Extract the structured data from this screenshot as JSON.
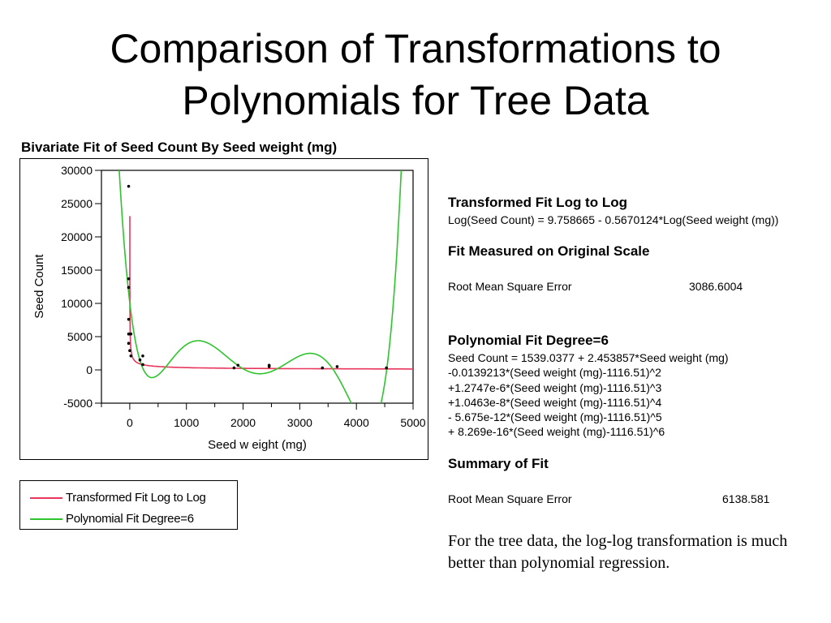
{
  "slide": {
    "title_line1": "Comparison of Transformations to",
    "title_line2": "Polynomials for Tree Data",
    "note": "For the tree data, the log-log transformation is much better than polynomial regression."
  },
  "report": {
    "loglog_heading": "Transformed Fit Log to Log",
    "loglog_equation": "Log(Seed Count) = 9.758665 - 0.5670124*Log(Seed weight (mg))",
    "orig_scale_heading": "Fit Measured on Original Scale",
    "rmse_label_1": "Root Mean Square Error",
    "rmse_value_1": "3086.6004",
    "poly_heading": "Polynomial Fit Degree=6",
    "poly_lines": [
      "Seed Count = 1539.0377 + 2.453857*Seed weight (mg)",
      "-0.0139213*(Seed weight (mg)-1116.51)^2",
      "+1.2747e-6*(Seed weight (mg)-1116.51)^3",
      "+1.0463e-8*(Seed weight (mg)-1116.51)^4",
      "- 5.675e-12*(Seed weight (mg)-1116.51)^5",
      "+ 8.269e-16*(Seed weight (mg)-1116.51)^6"
    ],
    "summary_heading": "Summary of Fit",
    "rmse_label_2": "Root Mean Square Error",
    "rmse_value_2": "6138.581"
  },
  "chart_data": {
    "type": "scatter",
    "title": "Bivariate Fit of Seed Count By Seed weight (mg)",
    "xlabel": "Seed w eight (mg)",
    "ylabel": "Seed Count",
    "xlim": [
      -500,
      5000
    ],
    "ylim": [
      -5000,
      30000
    ],
    "xticks": [
      0,
      1000,
      2000,
      3000,
      4000,
      5000
    ],
    "yticks": [
      -5000,
      0,
      5000,
      10000,
      15000,
      20000,
      25000,
      30000
    ],
    "points": [
      [
        -20,
        27600
      ],
      [
        -20,
        13700
      ],
      [
        -20,
        12400
      ],
      [
        -20,
        7600
      ],
      [
        -20,
        5400
      ],
      [
        0,
        5400
      ],
      [
        20,
        5400
      ],
      [
        -20,
        4000
      ],
      [
        0,
        2900
      ],
      [
        20,
        2100
      ],
      [
        230,
        2100
      ],
      [
        180,
        1500
      ],
      [
        230,
        800
      ],
      [
        1840,
        300
      ],
      [
        1910,
        700
      ],
      [
        2460,
        500
      ],
      [
        2460,
        700
      ],
      [
        3400,
        300
      ],
      [
        3660,
        500
      ],
      [
        4530,
        300
      ]
    ],
    "series": [
      {
        "name": "Transformed Fit Log to Log",
        "color": "#e8365d",
        "type": "loglog",
        "intercept": 9.758665,
        "slope": -0.5670124
      },
      {
        "name": "Polynomial Fit Degree=6",
        "color": "#2ec42e",
        "type": "poly",
        "center": 1116.51,
        "coef": [
          1539.0377,
          2.453857,
          -0.0139213,
          1.2747e-06,
          1.0463e-08,
          -5.675e-12,
          8.269e-16
        ]
      }
    ],
    "legend": "below"
  }
}
